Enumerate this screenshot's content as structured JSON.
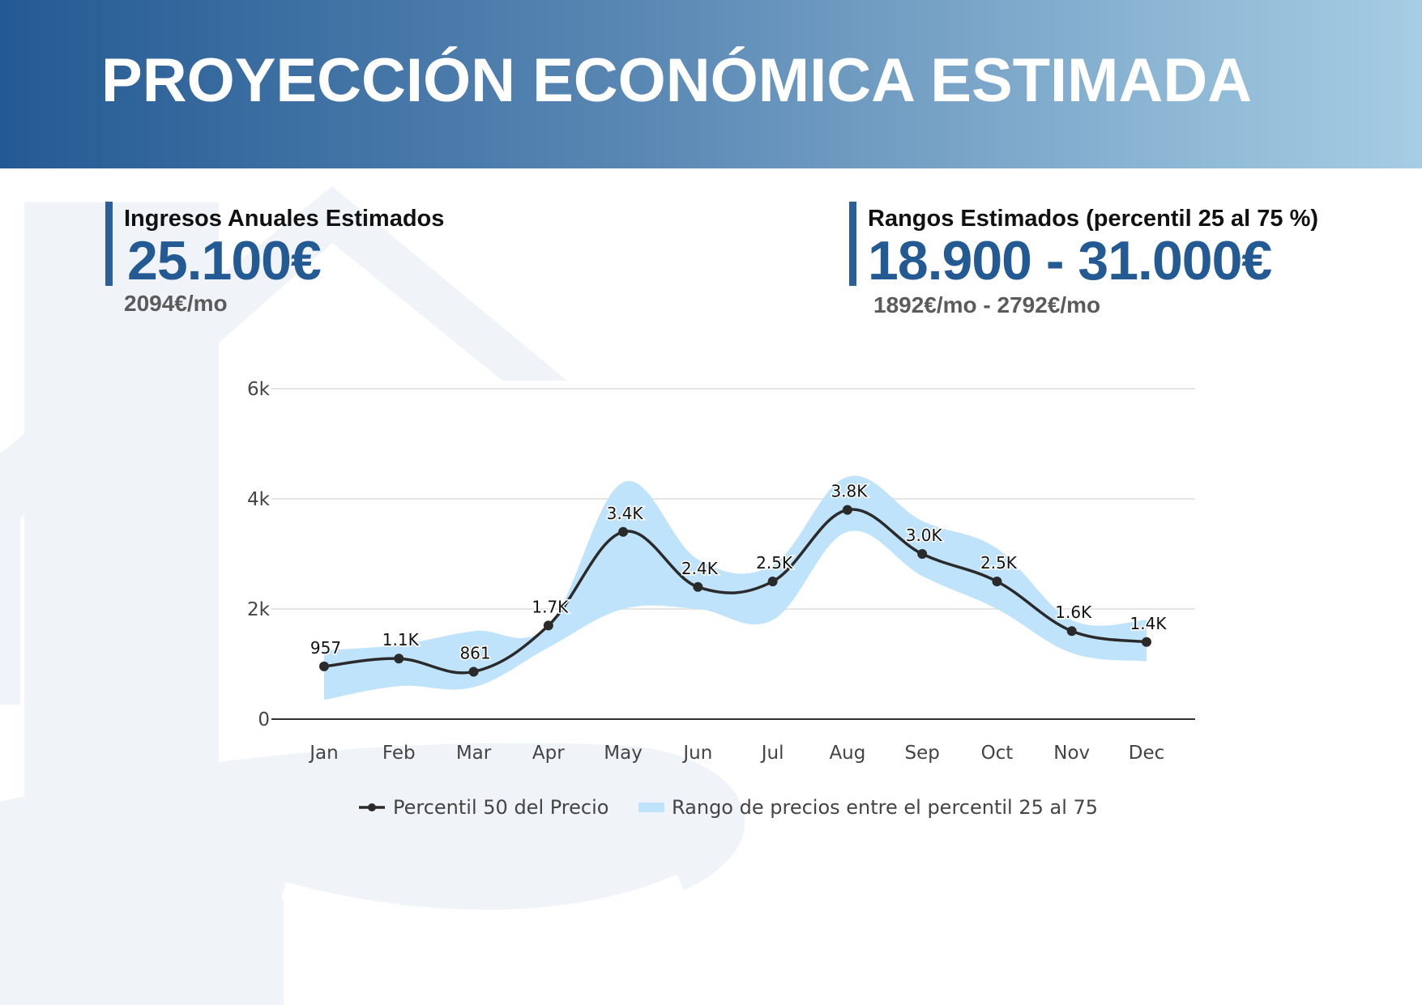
{
  "header": {
    "title": "PROYECCIÓN ECONÓMICA ESTIMADA"
  },
  "metrics": {
    "annual": {
      "label": "Ingresos Anuales Estimados",
      "value": "25.100€",
      "sub": "2094€/mo"
    },
    "range": {
      "label": "Rangos Estimados (percentil 25 al 75 %)",
      "value": "18.900 - 31.000€",
      "sub": "1892€/mo - 2792€/mo"
    }
  },
  "colors": {
    "brand": "#245a93",
    "band": "#bfe3fb",
    "line": "#2a2a2a"
  },
  "chart_data": {
    "type": "line",
    "title": "",
    "xlabel": "",
    "ylabel": "",
    "ylim": [
      0,
      6000
    ],
    "y_ticks": [
      0,
      2000,
      4000,
      6000
    ],
    "y_tick_labels": [
      "0",
      "2k",
      "4k",
      "6k"
    ],
    "categories": [
      "Jan",
      "Feb",
      "Mar",
      "Apr",
      "May",
      "Jun",
      "Jul",
      "Aug",
      "Sep",
      "Oct",
      "Nov",
      "Dec"
    ],
    "series": [
      {
        "name": "Percentil 50 del Precio",
        "values": [
          957,
          1100,
          861,
          1700,
          3400,
          2400,
          2500,
          3800,
          3000,
          2500,
          1600,
          1400
        ],
        "labels": [
          "957",
          "1.1K",
          "861",
          "1.7K",
          "3.4K",
          "2.4K",
          "2.5K",
          "3.8K",
          "3.0K",
          "2.5K",
          "1.6K",
          "1.4K"
        ]
      },
      {
        "name": "Rango de precios entre el percentil 25 al 75",
        "type": "band",
        "low": [
          350,
          600,
          580,
          1300,
          2000,
          2000,
          1800,
          3400,
          2600,
          2000,
          1200,
          1050
        ],
        "high": [
          1250,
          1350,
          1600,
          1700,
          4300,
          2900,
          2800,
          4400,
          3600,
          3100,
          1800,
          1800
        ]
      }
    ],
    "legend": [
      "Percentil 50 del Precio",
      "Rango de precios entre el percentil 25 al 75"
    ],
    "legend_position": "bottom",
    "grid": true
  }
}
